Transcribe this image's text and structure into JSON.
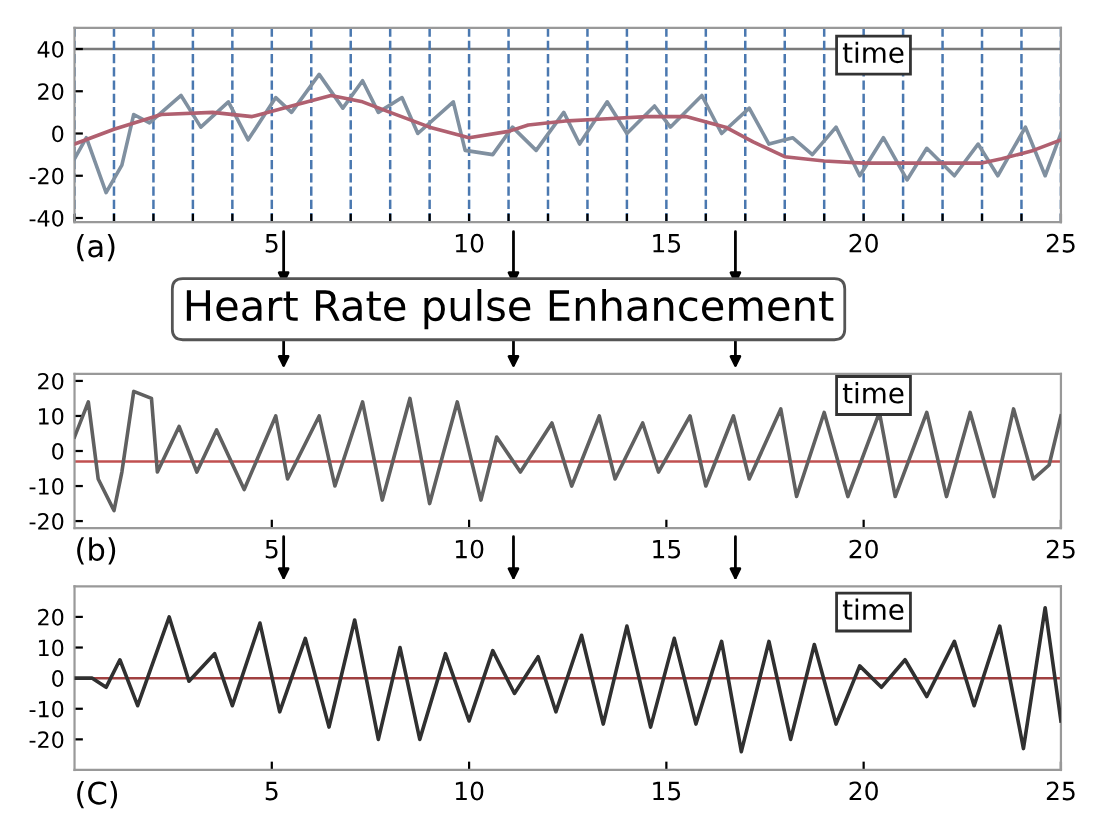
{
  "chart_data": [
    {
      "type": "line",
      "xlim": [
        0,
        25
      ],
      "xticks": [
        {
          "value": 0,
          "label": null
        },
        {
          "value": 1,
          "label": null
        },
        {
          "value": 2,
          "label": null
        },
        {
          "value": 3,
          "label": null
        },
        {
          "value": 4,
          "label": null
        },
        5,
        {
          "value": 6,
          "label": null
        },
        {
          "value": 7,
          "label": null
        },
        {
          "value": 8,
          "label": null
        },
        {
          "value": 9,
          "label": null
        },
        10,
        {
          "value": 11,
          "label": null
        },
        {
          "value": 12,
          "label": null
        },
        {
          "value": 13,
          "label": null
        },
        {
          "value": 14,
          "label": null
        },
        15,
        {
          "value": 16,
          "label": null
        },
        {
          "value": 17,
          "label": null
        },
        {
          "value": 18,
          "label": null
        },
        {
          "value": 19,
          "label": null
        },
        20,
        {
          "value": 21,
          "label": null
        },
        {
          "value": 22,
          "label": null
        },
        {
          "value": 23,
          "label": null
        },
        {
          "value": 24,
          "label": null
        },
        25
      ],
      "ylim": [
        -42,
        50
      ],
      "yticks": [
        -40,
        -20,
        0,
        20,
        40
      ],
      "grid": "x",
      "annotations": [
        "(a)",
        "time"
      ],
      "ref_lines": [
        {
          "axis": "y",
          "value": 40,
          "color": "#7a7a7a",
          "line_style": "solid"
        }
      ],
      "series": [
        {
          "color": "#8090a0",
          "x": [
            0,
            0.3,
            0.8,
            1.2,
            1.5,
            1.9,
            2.7,
            3.2,
            3.9,
            4.4,
            5.1,
            5.5,
            6.2,
            6.8,
            7.3,
            7.7,
            8.3,
            8.7,
            9.6,
            9.9,
            10.6,
            11.1,
            11.7,
            12.4,
            12.8,
            13.5,
            14,
            14.7,
            15.1,
            15.9,
            16.4,
            17.1,
            17.6,
            18.2,
            18.7,
            19.3,
            19.9,
            20.5,
            21.1,
            21.6,
            22.3,
            22.9,
            23.4,
            24.1,
            24.6,
            25
          ],
          "values": [
            -12,
            -2,
            -28,
            -15,
            9,
            5,
            18,
            3,
            15,
            -3,
            17,
            10,
            28,
            12,
            25,
            10,
            17,
            0,
            15,
            -8,
            -10,
            3,
            -8,
            10,
            -5,
            15,
            0,
            13,
            3,
            18,
            0,
            12,
            -5,
            -2,
            -10,
            3,
            -20,
            -2,
            -22,
            -7,
            -20,
            -5,
            -20,
            3,
            -20,
            0
          ]
        },
        {
          "color": "#b06070",
          "x": [
            0,
            1,
            2.2,
            3.5,
            4.5,
            5.5,
            6.5,
            7.3,
            8,
            9,
            10,
            11,
            11.5,
            12.5,
            13.5,
            14.5,
            15.5,
            16.5,
            17.2,
            18,
            19,
            20,
            21,
            22,
            23,
            23.5,
            24.3,
            25
          ],
          "values": [
            -5,
            2,
            9,
            10,
            8,
            13,
            18,
            15,
            10,
            3,
            -2,
            1,
            4,
            6,
            7,
            8,
            8,
            3,
            -4,
            -11,
            -13,
            -14,
            -14,
            -14,
            -14,
            -12,
            -8,
            -3
          ]
        }
      ]
    },
    {
      "type": "line",
      "title": "Heart Rate pulse Enhancement",
      "xlim": [
        0,
        25
      ],
      "xticks": [
        5,
        10,
        15,
        20,
        25
      ],
      "ylim": [
        -22,
        22
      ],
      "yticks": [
        -20,
        -10,
        0,
        10,
        20
      ],
      "grid": false,
      "annotations": [
        "(b)",
        "time"
      ],
      "ref_lines": [
        {
          "axis": "y",
          "value": -3,
          "color": "#c05050",
          "line_style": "solid"
        }
      ],
      "series": [
        {
          "color": "#606060",
          "x": [
            0,
            0.35,
            0.6,
            1,
            1.2,
            1.5,
            1.95,
            2.1,
            2.65,
            3.1,
            3.6,
            4.3,
            5.1,
            5.4,
            6.2,
            6.6,
            7.3,
            7.8,
            8.5,
            9,
            9.7,
            10.3,
            10.7,
            11.3,
            12.1,
            12.6,
            13.3,
            13.7,
            14.4,
            14.8,
            15.6,
            16,
            16.7,
            17.1,
            17.9,
            18.3,
            19,
            19.6,
            20.4,
            20.8,
            21.6,
            22.1,
            22.7,
            23.3,
            23.8,
            24.3,
            24.7,
            25
          ],
          "values": [
            4,
            14,
            -8,
            -17,
            -6,
            17,
            15,
            -6,
            7,
            -6,
            6,
            -11,
            10,
            -8,
            10,
            -10,
            14,
            -14,
            15,
            -15,
            14,
            -14,
            4,
            -6,
            8,
            -10,
            10,
            -8,
            8,
            -6,
            10,
            -10,
            10,
            -8,
            12,
            -13,
            11,
            -13,
            11,
            -13,
            11,
            -13,
            11,
            -13,
            12,
            -8,
            -4,
            10
          ]
        }
      ]
    },
    {
      "type": "line",
      "xlim": [
        0,
        25
      ],
      "xticks": [
        5,
        10,
        15,
        20,
        25
      ],
      "ylim": [
        -30,
        30
      ],
      "yticks": [
        -20,
        -10,
        0,
        10,
        20
      ],
      "grid": false,
      "annotations": [
        "(C)",
        "time"
      ],
      "ref_lines": [
        {
          "axis": "y",
          "value": 0,
          "color": "#a04040",
          "line_style": "solid"
        }
      ],
      "series": [
        {
          "color": "#303030",
          "x": [
            0,
            0.45,
            0.8,
            1.15,
            1.6,
            2.4,
            2.9,
            3.55,
            4,
            4.7,
            5.2,
            5.85,
            6.45,
            7.1,
            7.7,
            8.25,
            8.75,
            9.4,
            10,
            10.6,
            11.15,
            11.75,
            12.2,
            12.85,
            13.4,
            14,
            14.6,
            15.2,
            15.75,
            16.4,
            16.9,
            17.6,
            18.15,
            18.75,
            19.3,
            19.9,
            20.45,
            21.05,
            21.6,
            22.3,
            22.8,
            23.45,
            24.05,
            24.6,
            25
          ],
          "values": [
            0,
            0,
            -3,
            6,
            -9,
            20,
            -1,
            8,
            -9,
            18,
            -11,
            13,
            -16,
            19,
            -20,
            10,
            -20,
            8,
            -14,
            9,
            -5,
            7,
            -11,
            14,
            -15,
            17,
            -16,
            13,
            -15,
            12,
            -24,
            12,
            -20,
            11,
            -15,
            4,
            -3,
            6,
            -6,
            12,
            -9,
            17,
            -23,
            23,
            -14
          ]
        }
      ]
    }
  ]
}
